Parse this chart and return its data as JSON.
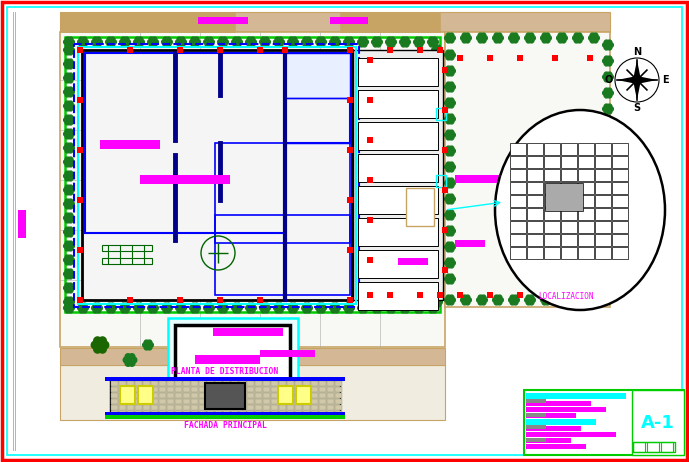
{
  "white": "#ffffff",
  "red": "#ff0000",
  "cyan": "#00ffff",
  "magenta": "#ff00ff",
  "blue": "#0000ff",
  "black": "#000000",
  "green": "#00cc00",
  "dark_green": "#006400",
  "teal": "#008080",
  "tan": "#c8a464",
  "tan_fill": "#d4b896",
  "gray": "#888888",
  "light_gray": "#cccccc",
  "yellow": "#ffff00",
  "bg_site": "#f8f8f4",
  "bg_bldg": "#f0f0f0",
  "title_text": "PLANTA DE DISTRIBUCION",
  "facade_text": "FACHADA PRINCIPAL",
  "localizacion_text": "LOCALIZACION"
}
